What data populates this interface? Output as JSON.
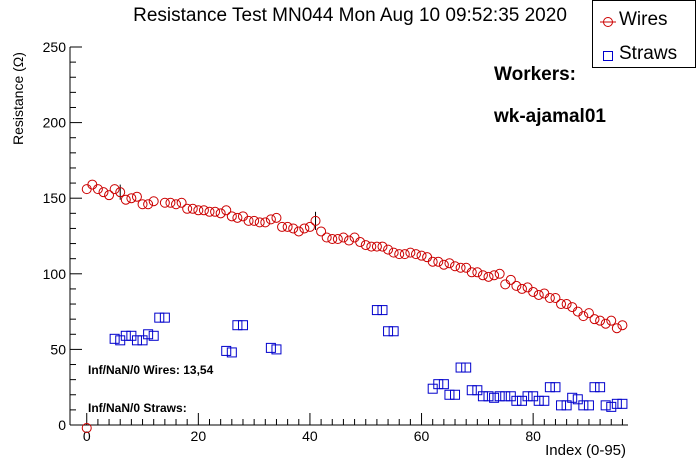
{
  "chart_data": {
    "type": "scatter",
    "title": "Resistance Test MN044 Mon Aug 10 09:52:35 2020",
    "xlabel": "Index (0-95)",
    "ylabel": "Resistance (Ω)",
    "xlim": [
      -3,
      97
    ],
    "ylim": [
      0,
      250
    ],
    "x_ticks": [
      0,
      20,
      40,
      60,
      80
    ],
    "y_ticks": [
      0,
      50,
      100,
      150,
      200,
      250
    ],
    "grid": false,
    "legend_position": "top-right",
    "series": [
      {
        "name": "Wires",
        "marker": "open-circle",
        "color": "#cc0000",
        "points": [
          [
            0,
            156
          ],
          [
            1,
            159
          ],
          [
            2,
            156
          ],
          [
            3,
            154
          ],
          [
            4,
            152
          ],
          [
            5,
            156
          ],
          [
            6,
            154
          ],
          [
            7,
            149
          ],
          [
            8,
            150
          ],
          [
            9,
            151
          ],
          [
            10,
            146
          ],
          [
            11,
            146
          ],
          [
            12,
            148
          ],
          [
            14,
            147
          ],
          [
            15,
            147
          ],
          [
            16,
            146
          ],
          [
            17,
            147
          ],
          [
            18,
            143
          ],
          [
            19,
            143
          ],
          [
            20,
            142
          ],
          [
            21,
            142
          ],
          [
            22,
            141
          ],
          [
            23,
            141
          ],
          [
            24,
            140
          ],
          [
            25,
            142
          ],
          [
            26,
            138
          ],
          [
            27,
            137
          ],
          [
            28,
            138
          ],
          [
            29,
            135
          ],
          [
            30,
            135
          ],
          [
            31,
            134
          ],
          [
            32,
            134
          ],
          [
            33,
            136
          ],
          [
            34,
            137
          ],
          [
            35,
            131
          ],
          [
            36,
            131
          ],
          [
            37,
            130
          ],
          [
            38,
            128
          ],
          [
            39,
            130
          ],
          [
            40,
            131
          ],
          [
            41,
            135
          ],
          [
            42,
            128
          ],
          [
            43,
            124
          ],
          [
            44,
            123
          ],
          [
            45,
            123
          ],
          [
            46,
            124
          ],
          [
            47,
            122
          ],
          [
            48,
            124
          ],
          [
            49,
            121
          ],
          [
            50,
            119
          ],
          [
            51,
            118
          ],
          [
            52,
            118
          ],
          [
            53,
            118
          ],
          [
            54,
            116
          ],
          [
            55,
            114
          ],
          [
            56,
            113
          ],
          [
            57,
            113
          ],
          [
            58,
            114
          ],
          [
            59,
            113
          ],
          [
            60,
            112
          ],
          [
            61,
            111
          ],
          [
            62,
            108
          ],
          [
            63,
            108
          ],
          [
            64,
            106
          ],
          [
            65,
            107
          ],
          [
            66,
            105
          ],
          [
            67,
            104
          ],
          [
            68,
            104
          ],
          [
            69,
            101
          ],
          [
            70,
            101
          ],
          [
            71,
            99
          ],
          [
            72,
            98
          ],
          [
            73,
            99
          ],
          [
            74,
            100
          ],
          [
            75,
            93
          ],
          [
            76,
            96
          ],
          [
            77,
            92
          ],
          [
            78,
            90
          ],
          [
            79,
            91
          ],
          [
            80,
            88
          ],
          [
            81,
            86
          ],
          [
            82,
            87
          ],
          [
            83,
            84
          ],
          [
            84,
            84
          ],
          [
            85,
            80
          ],
          [
            86,
            80
          ],
          [
            87,
            78
          ],
          [
            88,
            75
          ],
          [
            89,
            72
          ],
          [
            90,
            74
          ],
          [
            91,
            70
          ],
          [
            92,
            69
          ],
          [
            93,
            67
          ],
          [
            94,
            69
          ],
          [
            95,
            64
          ],
          [
            96,
            66
          ]
        ],
        "extra_points": [
          [
            0,
            -2
          ]
        ],
        "error_bars": [
          {
            "x": 6,
            "y": 154,
            "err": 5
          },
          {
            "x": 41,
            "y": 135,
            "err": 6
          }
        ]
      },
      {
        "name": "Straws",
        "marker": "open-square",
        "color": "#0000cc",
        "points": [
          [
            5,
            57
          ],
          [
            6,
            56
          ],
          [
            7,
            59
          ],
          [
            8,
            59
          ],
          [
            9,
            56
          ],
          [
            10,
            56
          ],
          [
            11,
            60
          ],
          [
            12,
            59
          ],
          [
            13,
            71
          ],
          [
            14,
            71
          ],
          [
            25,
            49
          ],
          [
            26,
            48
          ],
          [
            27,
            66
          ],
          [
            28,
            66
          ],
          [
            33,
            51
          ],
          [
            34,
            50
          ],
          [
            52,
            76
          ],
          [
            53,
            76
          ],
          [
            54,
            62
          ],
          [
            55,
            62
          ],
          [
            62,
            24
          ],
          [
            63,
            27
          ],
          [
            64,
            27
          ],
          [
            65,
            20
          ],
          [
            66,
            20
          ],
          [
            67,
            38
          ],
          [
            68,
            38
          ],
          [
            69,
            23
          ],
          [
            70,
            23
          ],
          [
            71,
            19
          ],
          [
            72,
            19
          ],
          [
            73,
            18
          ],
          [
            74,
            19
          ],
          [
            75,
            19
          ],
          [
            76,
            19
          ],
          [
            77,
            16
          ],
          [
            78,
            16
          ],
          [
            79,
            19
          ],
          [
            80,
            19
          ],
          [
            81,
            16
          ],
          [
            82,
            16
          ],
          [
            83,
            25
          ],
          [
            84,
            25
          ],
          [
            85,
            13
          ],
          [
            86,
            13
          ],
          [
            87,
            18
          ],
          [
            88,
            17
          ],
          [
            89,
            13
          ],
          [
            90,
            13
          ],
          [
            91,
            25
          ],
          [
            92,
            25
          ],
          [
            93,
            13
          ],
          [
            94,
            12
          ],
          [
            95,
            14
          ],
          [
            96,
            14
          ]
        ]
      }
    ],
    "annotations": {
      "workers_title": "Workers:",
      "workers_name": "wk-ajamal01",
      "inf_wires": "Inf/NaN/0 Wires: 13,54",
      "inf_straws": "Inf/NaN/0 Straws:"
    }
  }
}
